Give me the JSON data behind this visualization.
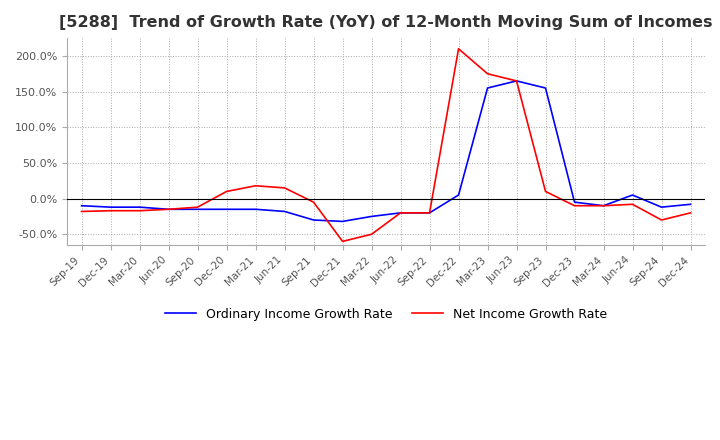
{
  "title": "[5288]  Trend of Growth Rate (YoY) of 12-Month Moving Sum of Incomes",
  "title_fontsize": 11.5,
  "ylim": [
    -65,
    225
  ],
  "yticks": [
    -50,
    0,
    50,
    100,
    150,
    200
  ],
  "legend_labels": [
    "Ordinary Income Growth Rate",
    "Net Income Growth Rate"
  ],
  "ordinary_color": "#0000FF",
  "net_color": "#FF0000",
  "dates": [
    "Sep-19",
    "Dec-19",
    "Mar-20",
    "Jun-20",
    "Sep-20",
    "Dec-20",
    "Mar-21",
    "Jun-21",
    "Sep-21",
    "Dec-21",
    "Mar-22",
    "Jun-22",
    "Sep-22",
    "Dec-22",
    "Mar-23",
    "Jun-23",
    "Sep-23",
    "Dec-23",
    "Mar-24",
    "Jun-24",
    "Sep-24",
    "Dec-24"
  ],
  "ordinary_income_growth": [
    -10,
    -12,
    -12,
    -15,
    -15,
    -15,
    -15,
    -18,
    -30,
    -32,
    -25,
    -20,
    -20,
    5,
    155,
    165,
    155,
    -5,
    -10,
    5,
    -12,
    -8
  ],
  "net_income_growth": [
    -18,
    -17,
    -17,
    -15,
    -12,
    10,
    18,
    15,
    -5,
    -60,
    -50,
    -20,
    -20,
    210,
    175,
    165,
    10,
    -10,
    -10,
    -8,
    -30,
    -20
  ]
}
